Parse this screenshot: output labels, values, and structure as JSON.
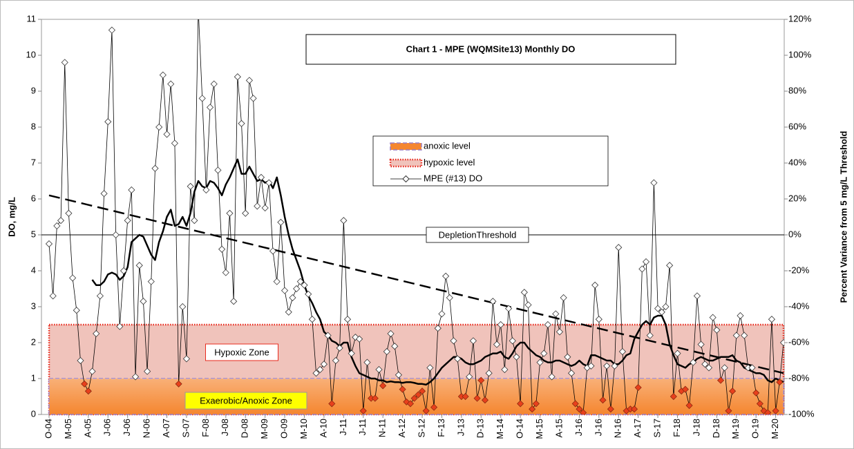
{
  "chart_data": {
    "type": "line",
    "title": "Chart 1 - MPE (WQMSite13) Monthly DO",
    "ylabel": "DO, mg/L",
    "y2label": "Percent Variance from 5 mg/L Threshold",
    "categories": [
      "O-04",
      null,
      null,
      null,
      null,
      "M-05",
      null,
      null,
      null,
      null,
      "A-05",
      null,
      null,
      null,
      null,
      "J-06",
      null,
      null,
      null,
      null,
      "J-06",
      null,
      null,
      null,
      null,
      "N-06",
      null,
      null,
      null,
      null,
      "A-07",
      null,
      null,
      null,
      null,
      "S-07",
      null,
      null,
      null,
      null,
      "F-08",
      null,
      null,
      null,
      null,
      "J-08",
      null,
      null,
      null,
      null,
      "D-08",
      null,
      null,
      null,
      null,
      "M-09",
      null,
      null,
      null,
      null,
      "O-09",
      null,
      null,
      null,
      null,
      "M-10",
      null,
      null,
      null,
      null,
      "A-10",
      null,
      null,
      null,
      null,
      "J-11",
      null,
      null,
      null,
      null,
      "J-11",
      null,
      null,
      null,
      null,
      "N-11",
      null,
      null,
      null,
      null,
      "A-12",
      null,
      null,
      null,
      null,
      "S-12",
      null,
      null,
      null,
      null,
      "F-13",
      null,
      null,
      null,
      null,
      "J-13",
      null,
      null,
      null,
      null,
      "D-13",
      null,
      null,
      null,
      null,
      "M-14",
      null,
      null,
      null,
      null,
      "O-14",
      null,
      null,
      null,
      null,
      "M-15",
      null,
      null,
      null,
      null,
      "A-15",
      null,
      null,
      null,
      null,
      "J-16",
      null,
      null,
      null,
      null,
      "J-16",
      null,
      null,
      null,
      null,
      "N-16",
      null,
      null,
      null,
      null,
      "A-17",
      null,
      null,
      null,
      null,
      "S-17",
      null,
      null,
      null,
      null,
      "F-18",
      null,
      null,
      null,
      null,
      "J-18",
      null,
      null,
      null,
      null,
      "D-18",
      null,
      null,
      null,
      null,
      "M-19",
      null,
      null,
      null,
      null,
      "O-19",
      null,
      null,
      null,
      null,
      "M-20",
      null,
      null
    ],
    "series": [
      {
        "name": "MPE (#13) DO",
        "color": "#000000",
        "marker_color": "#ffffff",
        "low_marker_color": "#e8401c",
        "values": [
          4.75,
          3.3,
          5.25,
          5.4,
          9.8,
          5.6,
          3.8,
          2.9,
          1.5,
          0.85,
          0.65,
          1.2,
          2.25,
          3.3,
          6.15,
          8.15,
          10.7,
          5.0,
          2.45,
          4.0,
          5.4,
          6.25,
          1.05,
          4.15,
          3.15,
          1.2,
          3.7,
          6.85,
          8.0,
          9.45,
          7.8,
          9.2,
          7.55,
          0.85,
          3.0,
          1.55,
          6.35,
          5.4,
          11.3,
          8.8,
          6.25,
          8.55,
          9.2,
          6.8,
          4.6,
          3.95,
          5.6,
          3.15,
          9.4,
          8.1,
          5.6,
          9.3,
          8.8,
          5.8,
          6.6,
          5.75,
          6.45,
          4.55,
          3.7,
          5.35,
          3.45,
          2.85,
          3.25,
          3.5,
          3.7,
          3.6,
          3.35,
          2.65,
          1.15,
          1.25,
          1.4,
          2.2,
          0.3,
          1.5,
          1.85,
          5.4,
          2.65,
          1.7,
          2.15,
          2.1,
          0.1,
          1.45,
          0.45,
          0.45,
          1.25,
          0.8,
          1.75,
          2.25,
          1.9,
          1.1,
          0.7,
          0.35,
          0.3,
          0.45,
          0.55,
          0.65,
          0.1,
          1.3,
          0.2,
          2.4,
          2.8,
          3.85,
          3.25,
          2.05,
          1.55,
          0.5,
          0.5,
          1.05,
          2.05,
          0.45,
          0.95,
          0.4,
          1.15,
          3.15,
          1.95,
          2.5,
          1.25,
          2.95,
          2.05,
          1.6,
          0.3,
          3.4,
          3.05,
          0.15,
          0.3,
          1.45,
          1.7,
          2.5,
          1.05,
          2.8,
          2.3,
          3.25,
          1.6,
          1.15,
          0.3,
          0.15,
          0.05,
          1.3,
          1.35,
          3.6,
          2.65,
          0.4,
          1.35,
          0.15,
          1.35,
          4.65,
          1.75,
          0.1,
          0.15,
          0.15,
          0.75,
          4.05,
          4.25,
          2.2,
          6.45,
          2.95,
          2.85,
          3.0,
          4.15,
          0.5,
          1.7,
          0.65,
          0.7,
          0.25,
          1.45,
          3.3,
          1.95,
          1.4,
          1.3,
          2.7,
          2.35,
          0.95,
          1.3,
          0.1,
          0.65,
          2.2,
          2.75,
          2.2,
          1.3,
          1.3,
          0.6,
          0.3,
          0.1,
          0.05,
          2.65,
          0.1,
          0.9,
          2.0
        ]
      }
    ],
    "moving_average": {
      "color": "#000000",
      "values": [
        null,
        null,
        null,
        null,
        null,
        null,
        null,
        null,
        null,
        null,
        null,
        3.75,
        3.6,
        3.6,
        3.7,
        3.9,
        3.95,
        3.9,
        3.75,
        3.85,
        4.1,
        4.8,
        4.9,
        5.0,
        4.95,
        4.7,
        4.45,
        4.3,
        4.8,
        5.1,
        5.5,
        5.7,
        5.25,
        5.3,
        5.5,
        5.25,
        5.6,
        6.2,
        6.5,
        6.35,
        6.3,
        6.5,
        6.45,
        6.3,
        6.1,
        6.4,
        6.6,
        6.85,
        7.1,
        6.7,
        6.7,
        6.9,
        6.7,
        6.5,
        6.55,
        6.45,
        6.5,
        6.3,
        6.6,
        6.1,
        5.5,
        5.0,
        4.6,
        4.3,
        4.0,
        3.6,
        3.3,
        3.1,
        2.85,
        2.65,
        2.3,
        2.2,
        2.05,
        2.0,
        1.9,
        2.0,
        2.0,
        1.6,
        1.35,
        1.15,
        1.1,
        1.05,
        1.0,
        1.0,
        0.95,
        0.95,
        0.9,
        0.92,
        0.9,
        0.9,
        0.88,
        0.9,
        0.9,
        0.88,
        0.85,
        0.85,
        0.83,
        0.9,
        1.0,
        1.15,
        1.3,
        1.4,
        1.5,
        1.6,
        1.6,
        1.55,
        1.45,
        1.4,
        1.4,
        1.45,
        1.5,
        1.6,
        1.65,
        1.7,
        1.7,
        1.75,
        1.6,
        1.55,
        1.7,
        1.9,
        2.0,
        2.0,
        1.85,
        1.75,
        1.65,
        1.6,
        1.5,
        1.45,
        1.45,
        1.5,
        1.5,
        1.45,
        1.4,
        1.35,
        1.4,
        1.5,
        1.4,
        1.35,
        1.65,
        1.65,
        1.6,
        1.55,
        1.5,
        1.5,
        1.4,
        1.4,
        1.5,
        1.65,
        1.7,
        2.1,
        2.3,
        2.5,
        2.6,
        2.5,
        2.7,
        2.75,
        2.75,
        2.5,
        1.95,
        1.65,
        1.4,
        1.35,
        1.3,
        1.4,
        1.45,
        1.55,
        1.6,
        1.55,
        1.5,
        1.5,
        1.55,
        1.6,
        1.6,
        1.6,
        1.65,
        1.5,
        1.45,
        1.3,
        1.25,
        1.2,
        1.15,
        1.15,
        1.1,
        0.95,
        0.9,
        1.0,
        0.95,
        0.9
      ]
    },
    "trend": {
      "color": "#000000",
      "values": [
        6.1,
        1.15
      ]
    },
    "bands": [
      {
        "name": "anoxic level",
        "label": "Exaerobic/Anoxic Zone",
        "from": 0,
        "to": 1,
        "color": "#f5862f",
        "border": "#9b7fc4",
        "label_color": "#ffff00"
      },
      {
        "name": "hypoxic level",
        "label": "Hypoxic Zone",
        "from": 0,
        "to": 2.5,
        "color": "#f0c3bb",
        "border": "#e8281c",
        "label_color": "#ffffff"
      }
    ],
    "threshold": {
      "value": 5,
      "label": "DepletionThreshold"
    },
    "ylim": [
      0,
      11
    ],
    "yticks": [
      0,
      1,
      2,
      3,
      4,
      5,
      6,
      7,
      8,
      9,
      10,
      11
    ],
    "y2lim": [
      -100,
      120
    ],
    "y2ticks": [
      {
        "value": -100,
        "label": "-100%"
      },
      {
        "value": -80,
        "label": "-80%"
      },
      {
        "value": -60,
        "label": "-60%"
      },
      {
        "value": -40,
        "label": "-40%"
      },
      {
        "value": -20,
        "label": "-20%"
      },
      {
        "value": 0,
        "label": "0%"
      },
      {
        "value": 20,
        "label": "20%"
      },
      {
        "value": 40,
        "label": "40%"
      },
      {
        "value": 60,
        "label": "60%"
      },
      {
        "value": 80,
        "label": "80%"
      },
      {
        "value": 100,
        "label": "100%"
      },
      {
        "value": 120,
        "label": "120%"
      }
    ]
  }
}
